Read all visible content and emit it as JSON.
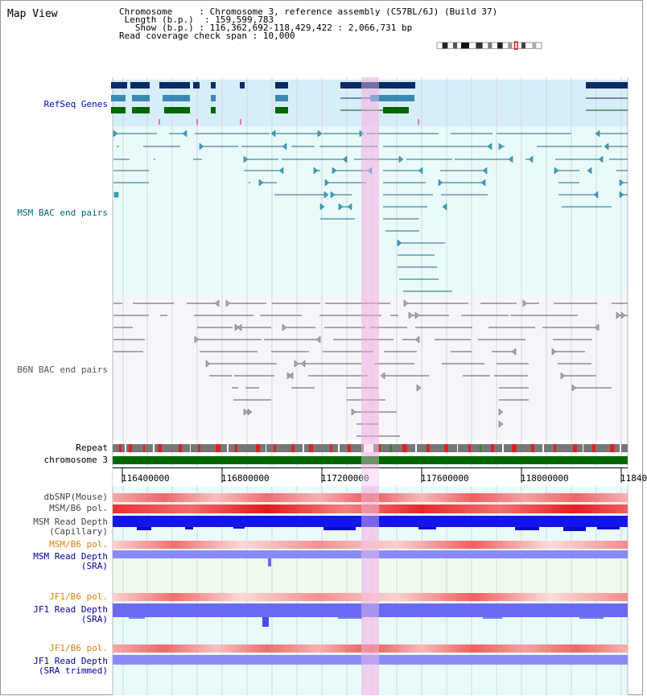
{
  "title": "Map View",
  "info": {
    "chromosome_label": "Chromosome",
    "chromosome_value": "Chromosome 3, reference assembly (C57BL/6J) (Build 37)",
    "length_label": "Length (b.p.)",
    "length_value": "159,599,783",
    "show_label": "Show (b.p.)",
    "show_value": "116,362,692-118,429,422 : 2,066,731 bp",
    "coverage_label": "Read coverage check span",
    "coverage_value": "10,000"
  },
  "tracks": {
    "refseq": "RefSeq Genes",
    "msm_bac": "MSM BAC end pairs",
    "b6n_bac": "B6N BAC end pairs",
    "repeat": "Repeat",
    "chromosome": "chromosome 3",
    "dbsnp": "dbSNP(Mouse)",
    "msm_b6_pol": "MSM/B6 pol.",
    "msm_depth_cap_1": "MSM Read Depth",
    "msm_depth_cap_2": "(Capillary)",
    "msm_b6_pol2": "MSM/B6 pol.",
    "msm_depth_sra_1": "MSM Read Depth",
    "msm_depth_sra_2": "(SRA)",
    "jf1_b6_pol": "JF1/B6 pol.",
    "jf1_depth_sra_1": "JF1 Read Depth",
    "jf1_depth_sra_2": "(SRA)",
    "jf1_b6_pol2": "JF1/B6 pol.",
    "jf1_depth_trim_1": "JF1 Read Depth",
    "jf1_depth_trim_2": "(SRA trimmed)"
  },
  "ruler": {
    "ticks": [
      "116400000",
      "116800000",
      "117200000",
      "117600000",
      "118000000",
      "11840"
    ]
  },
  "colors": {
    "refseq_band": "#d6eefa",
    "bac_band": "#e9fafa",
    "b6n_band": "#f4f4f8",
    "highlight": "#f5d8f0",
    "refseq_label": "#0000cc",
    "msm_label": "#006680",
    "b6n_label": "#555555",
    "pol_label": "#e08000",
    "depth_label": "#000099",
    "chromosome_bar": "#006600"
  }
}
